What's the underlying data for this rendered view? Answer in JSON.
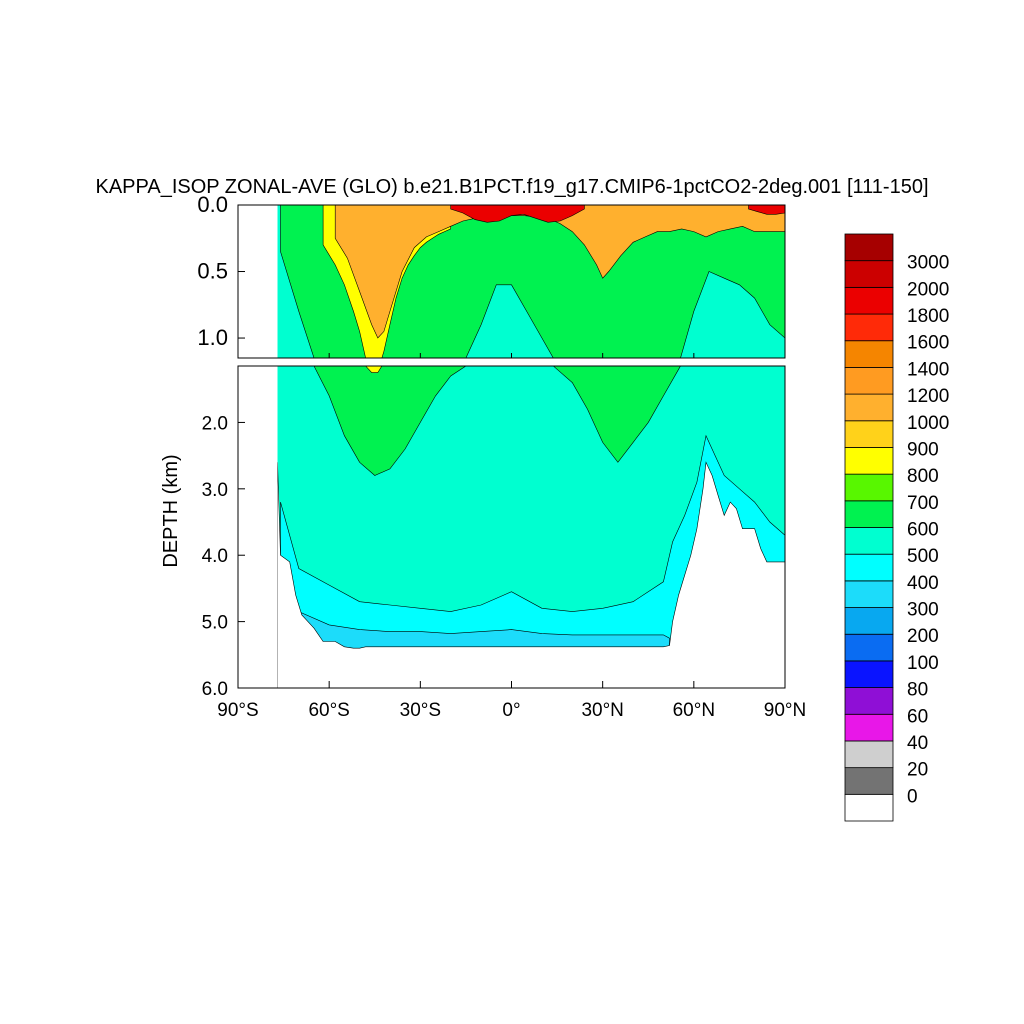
{
  "chart_data": {
    "type": "heatmap",
    "title": "KAPPA_ISOP ZONAL-AVE (GLO) b.e21.B1PCT.f19_g17.CMIP6-1pctCO2-2deg.001 [111-150]",
    "xlabel": "",
    "ylabel": "DEPTH (km)",
    "xlim": [
      -90,
      90
    ],
    "x_ticks": [
      {
        "value": -90,
        "label": "90°S"
      },
      {
        "value": -60,
        "label": "60°S"
      },
      {
        "value": -30,
        "label": "30°S"
      },
      {
        "value": 0,
        "label": "0°"
      },
      {
        "value": 30,
        "label": "30°N"
      },
      {
        "value": 60,
        "label": "60°N"
      },
      {
        "value": 90,
        "label": "90°N"
      }
    ],
    "upper_panel": {
      "ylim": [
        0.0,
        1.15
      ],
      "y_ticks": [
        {
          "value": 0.0,
          "label": "0.0"
        },
        {
          "value": 0.5,
          "label": "0.5"
        },
        {
          "value": 1.0,
          "label": "1.0"
        }
      ]
    },
    "lower_panel": {
      "ylim": [
        1.15,
        6.0
      ],
      "y_ticks": [
        {
          "value": 2.0,
          "label": "2.0"
        },
        {
          "value": 3.0,
          "label": "3.0"
        },
        {
          "value": 4.0,
          "label": "4.0"
        },
        {
          "value": 5.0,
          "label": "5.0"
        },
        {
          "value": 6.0,
          "label": "6.0"
        }
      ]
    },
    "colorbar": {
      "labels": [
        "0",
        "20",
        "40",
        "60",
        "80",
        "100",
        "200",
        "300",
        "400",
        "500",
        "600",
        "700",
        "800",
        "900",
        "1000",
        "1200",
        "1400",
        "1600",
        "1800",
        "2000",
        "3000"
      ],
      "colors": [
        "#ffffff",
        "#737373",
        "#cfcfcf",
        "#e817e8",
        "#8f0fd6",
        "#0a14ff",
        "#0a6cf2",
        "#08a8f0",
        "#1cdcfa",
        "#00ffff",
        "#00ffd0",
        "#00f250",
        "#58f700",
        "#ffff00",
        "#ffd21a",
        "#ffb02e",
        "#ff9b21",
        "#f58500",
        "#ff2a08",
        "#eb0000",
        "#cc0000",
        "#a60000"
      ]
    },
    "bathymetry_profile": {
      "lat": [
        -77,
        -76,
        -73,
        -71,
        -69,
        -67,
        -65,
        -62,
        -60,
        -58,
        -55,
        -52,
        -50,
        -48,
        -46,
        -40,
        -30,
        -20,
        -10,
        0,
        10,
        20,
        30,
        40,
        50,
        52,
        53,
        55,
        57,
        59,
        61,
        63,
        64,
        66,
        68,
        70,
        72,
        74,
        76,
        78,
        80,
        82,
        84,
        86,
        88,
        90
      ],
      "depth_km": [
        2.6,
        4.0,
        4.1,
        4.6,
        4.9,
        5.0,
        5.1,
        5.3,
        5.3,
        5.3,
        5.38,
        5.4,
        5.4,
        5.38,
        5.38,
        5.38,
        5.38,
        5.38,
        5.38,
        5.38,
        5.38,
        5.38,
        5.38,
        5.38,
        5.38,
        5.36,
        5.0,
        4.6,
        4.3,
        4.0,
        3.6,
        3.0,
        2.6,
        2.8,
        3.1,
        3.4,
        3.2,
        3.3,
        3.6,
        3.6,
        3.6,
        3.9,
        4.1,
        4.1,
        4.1,
        4.1
      ]
    },
    "contour_bands": [
      {
        "value": 400,
        "lat": [
          -76,
          -70,
          -60,
          -50,
          -40,
          -30,
          -20,
          -10,
          0,
          10,
          20,
          30,
          40,
          50,
          53,
          57,
          61,
          64,
          67,
          70,
          75,
          80,
          85,
          90
        ],
        "upper_km": [
          3.2,
          4.2,
          4.45,
          4.7,
          4.75,
          4.8,
          4.85,
          4.75,
          4.55,
          4.8,
          4.85,
          4.8,
          4.7,
          4.4,
          3.8,
          3.4,
          2.9,
          2.2,
          2.5,
          2.8,
          3.0,
          3.2,
          3.5,
          3.7
        ]
      },
      {
        "value": 300,
        "lat": [
          -70,
          -60,
          -50,
          -40,
          -30,
          -20,
          -10,
          0,
          10,
          20,
          30,
          40,
          50,
          52
        ],
        "upper_km": [
          4.85,
          5.05,
          5.12,
          5.15,
          5.15,
          5.18,
          5.15,
          5.12,
          5.18,
          5.2,
          5.2,
          5.2,
          5.2,
          5.25
        ]
      },
      {
        "value": 600,
        "lat": [
          -76,
          -70,
          -65,
          -60,
          -55,
          -50,
          -45,
          -40,
          -35,
          -30,
          -25,
          -20,
          -15,
          -10,
          -5,
          0,
          5,
          10,
          15,
          20,
          25,
          30,
          35,
          40,
          45,
          50,
          55,
          60,
          65,
          70,
          75,
          80,
          85,
          90
        ],
        "lower_km": [
          0.35,
          0.8,
          1.15,
          1.6,
          2.2,
          2.6,
          2.8,
          2.7,
          2.4,
          2.0,
          1.6,
          1.3,
          1.15,
          0.9,
          0.6,
          0.6,
          0.8,
          1.0,
          1.2,
          1.4,
          1.8,
          2.3,
          2.6,
          2.3,
          2.0,
          1.6,
          1.2,
          0.8,
          0.5,
          0.55,
          0.6,
          0.7,
          0.9,
          1.0
        ]
      },
      {
        "value": 800,
        "lat": [
          -62,
          -58,
          -55,
          -52,
          -50,
          -48,
          -46,
          -44,
          -42,
          -40,
          -38,
          -36,
          -34,
          -32,
          -30,
          -28,
          -26,
          -24,
          -22,
          -20
        ],
        "lower_km": [
          0.3,
          0.45,
          0.6,
          0.8,
          0.95,
          1.15,
          1.25,
          1.25,
          1.1,
          0.9,
          0.7,
          0.55,
          0.45,
          0.38,
          0.32,
          0.28,
          0.25,
          0.22,
          0.2,
          0.18
        ]
      },
      {
        "value": 1000,
        "lat": [
          -58,
          -54,
          -50,
          -46,
          -44,
          -42,
          -40,
          -36,
          -32,
          -28,
          -24,
          -20,
          -16,
          -12,
          -8,
          -4,
          0,
          4,
          8,
          12,
          16,
          20,
          24,
          28,
          30,
          32,
          36,
          40,
          44,
          48,
          52,
          56,
          60,
          64,
          68,
          72,
          76,
          80,
          84,
          90
        ],
        "lower_km": [
          0.25,
          0.4,
          0.65,
          0.9,
          1.0,
          0.95,
          0.8,
          0.5,
          0.32,
          0.24,
          0.2,
          0.16,
          0.12,
          0.1,
          0.09,
          0.08,
          0.08,
          0.08,
          0.09,
          0.1,
          0.14,
          0.2,
          0.3,
          0.45,
          0.55,
          0.5,
          0.38,
          0.28,
          0.24,
          0.2,
          0.2,
          0.18,
          0.2,
          0.24,
          0.2,
          0.18,
          0.16,
          0.2,
          0.2,
          0.2
        ]
      },
      {
        "value": 1800,
        "lat": [
          -20,
          -16,
          -12,
          -8,
          -4,
          0,
          4,
          8,
          12,
          16,
          20,
          24
        ],
        "lower_km": [
          0.03,
          0.06,
          0.11,
          0.13,
          0.12,
          0.08,
          0.07,
          0.1,
          0.13,
          0.12,
          0.08,
          0.03
        ]
      },
      {
        "value": 1800,
        "lat": [
          78,
          81,
          84,
          87,
          90
        ],
        "lower_km": [
          0.03,
          0.05,
          0.07,
          0.07,
          0.06
        ]
      }
    ]
  }
}
